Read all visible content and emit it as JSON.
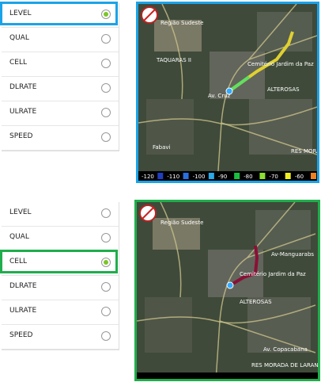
{
  "panels": [
    {
      "options": [
        "LEVEL",
        "QUAL",
        "CELL",
        "DLRATE",
        "ULRATE",
        "SPEED"
      ],
      "selected": 0,
      "highlight_color": "#1aa3e8",
      "map_labels": [
        "Região Sudeste",
        "TAQUARAS II",
        "Cemitério Jardim da Paz",
        "ALTEROSAS",
        "Fabavi",
        "Av. Cruz",
        "RES MORADA DE ARANJEIRA"
      ],
      "legend": {
        "labels": [
          "-120",
          "-110",
          "-100",
          "-90",
          "-80",
          "-70",
          "-60"
        ],
        "colors": [
          "#1f3fbf",
          "#2a6fe0",
          "#2aa8e8",
          "#18c040",
          "#8de030",
          "#f0f020",
          "#f08020"
        ]
      }
    },
    {
      "options": [
        "LEVEL",
        "QUAL",
        "CELL",
        "DLRATE",
        "ULRATE",
        "SPEED"
      ],
      "selected": 2,
      "highlight_color": "#1fae4b",
      "map_labels": [
        "Região Sudeste",
        "Av-Manguarabs",
        "Cemitério Jardim da Paz",
        "ALTEROSAS",
        "Av. Copacabana",
        "RES MORADA DE LARANJEIRA"
      ]
    }
  ]
}
